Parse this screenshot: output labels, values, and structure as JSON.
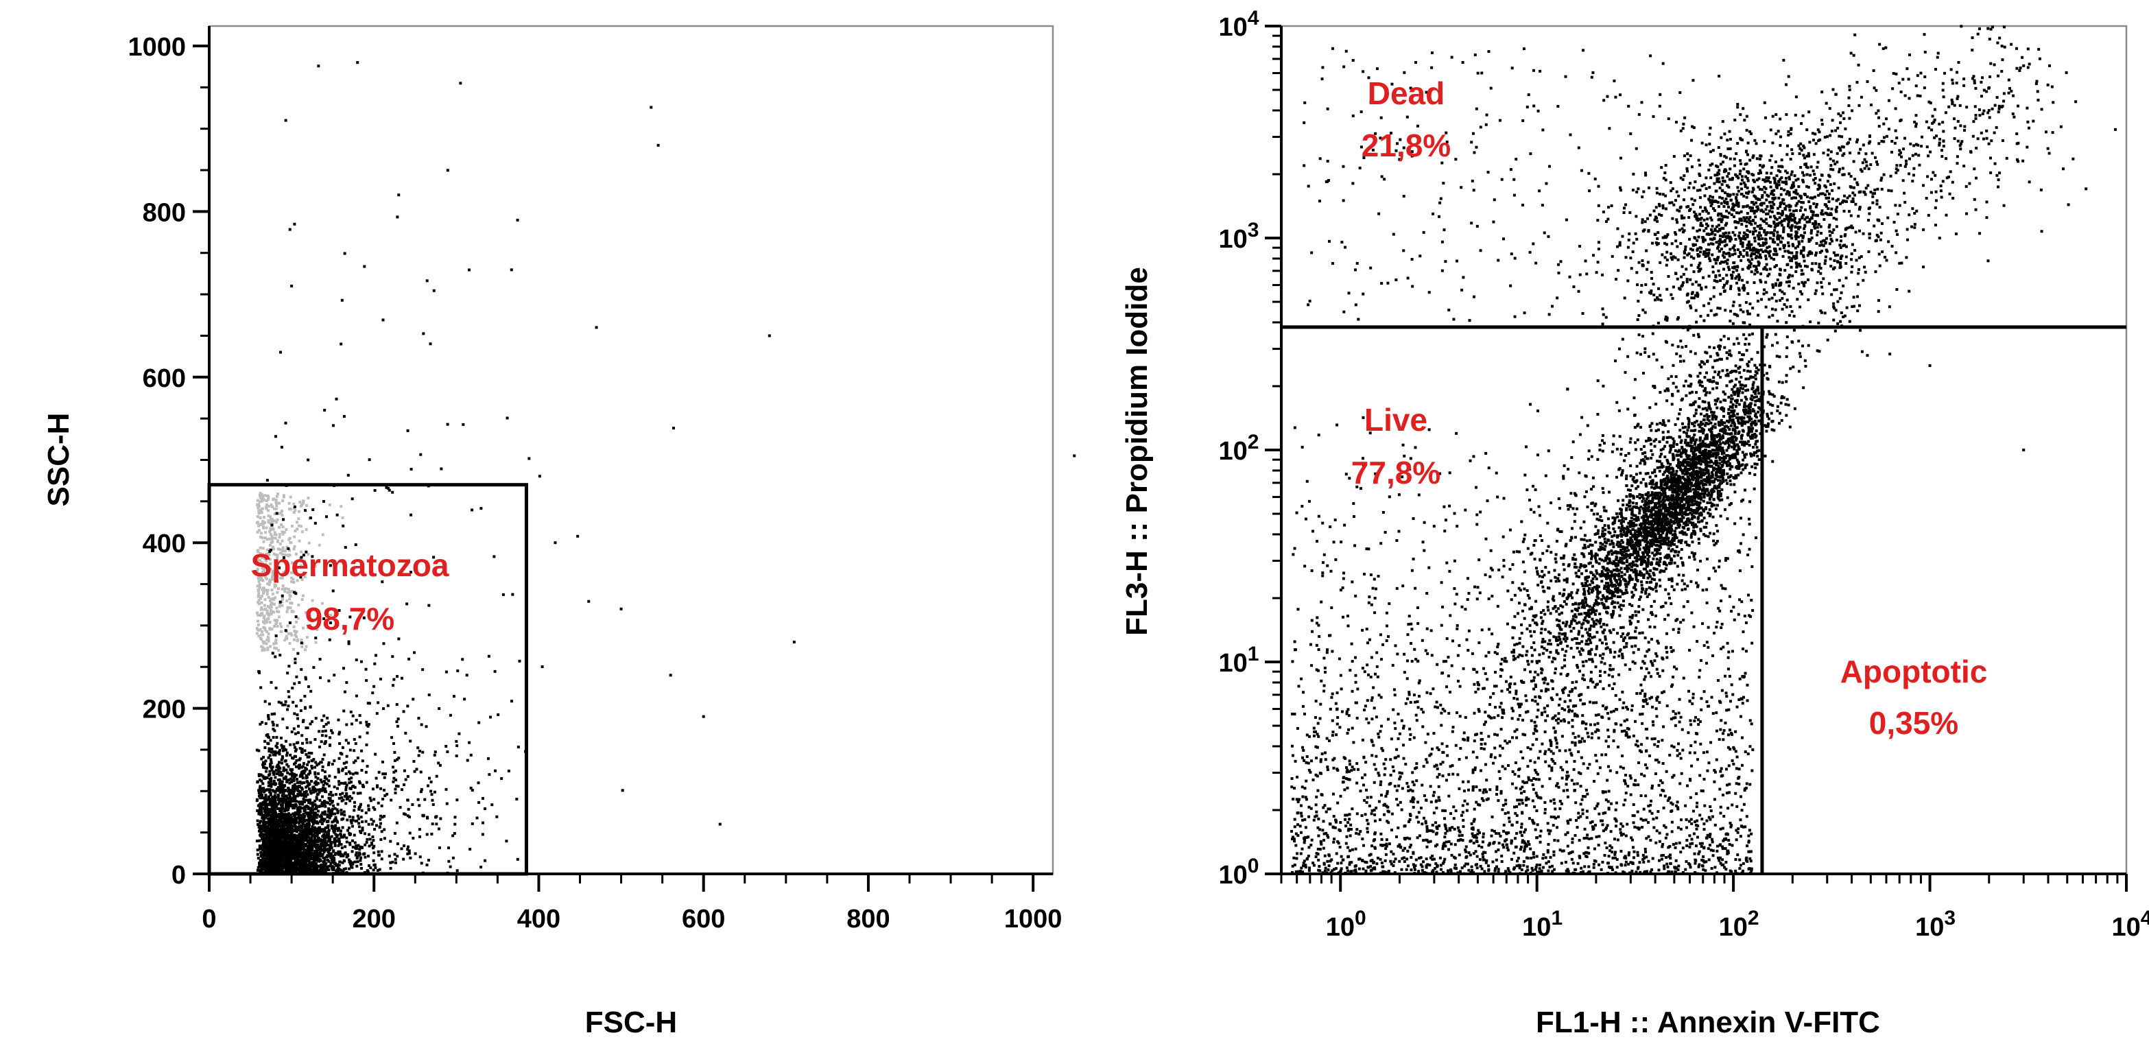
{
  "colors": {
    "axis": "#000000",
    "frame": "#8a8a8a",
    "dot": "#000000",
    "dot_light": "#bdbdbd",
    "gate_text": "#e02020"
  },
  "chart_data": [
    {
      "type": "scatter",
      "title": "",
      "xlabel": "FSC-H",
      "ylabel": "SSC-H",
      "xlim": [
        0,
        1024
      ],
      "ylim": [
        0,
        1024
      ],
      "xscale": "linear",
      "yscale": "linear",
      "xticks": [
        "0",
        "200",
        "400",
        "600",
        "800",
        "1000"
      ],
      "yticks": [
        "0",
        "200",
        "400",
        "600",
        "800",
        "1000"
      ],
      "grid": false,
      "gates": [
        {
          "name": "Spermatozoa",
          "value": "98,7%",
          "shape": "rectangle",
          "x": [
            0,
            385
          ],
          "y": [
            0,
            470
          ]
        }
      ],
      "series": [
        {
          "values": [
            [
              75,
              40
            ],
            [
              90,
              60
            ],
            [
              110,
              30
            ],
            [
              130,
              80
            ],
            [
              150,
              55
            ],
            [
              170,
              110
            ],
            [
              200,
              90
            ],
            [
              230,
              140
            ],
            [
              260,
              70
            ],
            [
              300,
              160
            ],
            [
              340,
              120
            ],
            [
              120,
              500
            ],
            [
              140,
              560
            ],
            [
              160,
              640
            ],
            [
              100,
              710
            ],
            [
              230,
              820
            ],
            [
              180,
              980
            ],
            [
              305,
              955
            ],
            [
              545,
              880
            ],
            [
              680,
              650
            ],
            [
              470,
              660
            ],
            [
              420,
              400
            ],
            [
              500,
              320
            ],
            [
              560,
              240
            ],
            [
              600,
              190
            ],
            [
              620,
              60
            ],
            [
              710,
              280
            ],
            [
              1050,
              505
            ]
          ]
        }
      ]
    },
    {
      "type": "scatter",
      "title": "",
      "xlabel": "FL1-H :: Annexin V-FITC",
      "ylabel": "FL3-H :: Propidium Iodide",
      "xlim": [
        0.5,
        10000
      ],
      "ylim": [
        1,
        10000
      ],
      "xscale": "log",
      "yscale": "log",
      "xticks": [
        "10^0",
        "10^1",
        "10^2",
        "10^3",
        "10^4"
      ],
      "yticks": [
        "10^0",
        "10^1",
        "10^2",
        "10^3",
        "10^4"
      ],
      "grid": false,
      "quadrant_divider": {
        "x": 140,
        "y": 380
      },
      "gates": [
        {
          "name": "Dead",
          "value": "21,8%",
          "quadrant": "upper-left"
        },
        {
          "name": "Live",
          "value": "77,8%",
          "quadrant": "lower-left"
        },
        {
          "name": "Apoptotic",
          "value": "0,35%",
          "quadrant": "lower-right"
        }
      ],
      "series": [
        {
          "values": [
            [
              60,
              70
            ],
            [
              45,
              55
            ],
            [
              80,
              110
            ],
            [
              100,
              900
            ],
            [
              150,
              1300
            ],
            [
              200,
              2500
            ],
            [
              350,
              3500
            ],
            [
              900,
              6000
            ],
            [
              2000,
              4000
            ],
            [
              3000,
              6500
            ],
            [
              20,
              30
            ],
            [
              10,
              15
            ],
            [
              5,
              8
            ],
            [
              2,
              3
            ],
            [
              1.5,
              20
            ],
            [
              3000,
              100
            ],
            [
              1000,
              250
            ]
          ]
        }
      ]
    }
  ]
}
